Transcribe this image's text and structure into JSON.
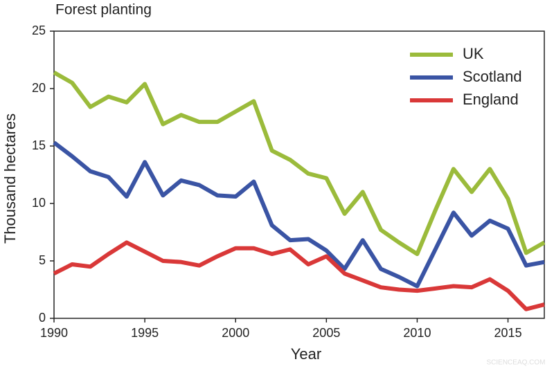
{
  "chart_data": {
    "type": "line",
    "title": "Forest planting",
    "x_label": "Year",
    "y_label": "Thousand hectares",
    "x": [
      1990,
      1991,
      1992,
      1993,
      1994,
      1995,
      1996,
      1997,
      1998,
      1999,
      2000,
      2001,
      2002,
      2003,
      2004,
      2005,
      2006,
      2007,
      2008,
      2009,
      2010,
      2011,
      2012,
      2013,
      2014,
      2015,
      2016,
      2017
    ],
    "series": [
      {
        "name": "UK",
        "color": "#9bbb3b",
        "values": [
          21.4,
          20.5,
          18.4,
          19.3,
          18.8,
          20.4,
          16.9,
          17.7,
          17.1,
          17.1,
          18.0,
          18.9,
          14.6,
          13.8,
          12.6,
          12.2,
          9.1,
          11.0,
          7.7,
          6.6,
          5.6,
          9.4,
          13.0,
          11.0,
          13.0,
          10.4,
          5.7,
          6.6
        ]
      },
      {
        "name": "Scotland",
        "color": "#3a54a4",
        "values": [
          15.3,
          14.1,
          12.8,
          12.3,
          10.6,
          13.6,
          10.7,
          12.0,
          11.6,
          10.7,
          10.6,
          11.9,
          8.1,
          6.8,
          6.9,
          5.9,
          4.3,
          6.8,
          4.3,
          3.6,
          2.8,
          6.0,
          9.2,
          7.2,
          8.5,
          7.8,
          4.6,
          4.9
        ]
      },
      {
        "name": "England",
        "color": "#d93838",
        "values": [
          3.9,
          4.7,
          4.5,
          5.6,
          6.6,
          5.8,
          5.0,
          4.9,
          4.6,
          5.4,
          6.1,
          6.1,
          5.6,
          6.0,
          4.7,
          5.4,
          3.9,
          3.3,
          2.7,
          2.5,
          2.4,
          2.6,
          2.8,
          2.7,
          3.4,
          2.4,
          0.8,
          1.2
        ]
      }
    ],
    "xlim": [
      1990,
      2017
    ],
    "xticks": [
      1990,
      1995,
      2000,
      2005,
      2010,
      2015
    ],
    "ylim": [
      0,
      25
    ],
    "yticks": [
      0,
      5,
      10,
      15,
      20,
      25
    ],
    "legend": "top-right",
    "watermark": "SCIENCEAQ.COM"
  }
}
